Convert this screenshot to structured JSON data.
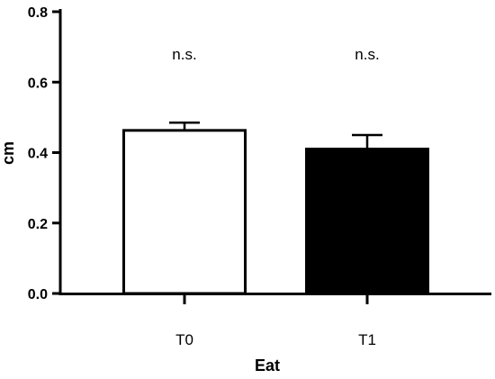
{
  "chart_data": {
    "type": "bar",
    "categories": [
      "T0",
      "T1"
    ],
    "values": [
      0.463,
      0.41
    ],
    "errors": [
      0.022,
      0.04
    ],
    "bar_fills": [
      "#ffffff",
      "#000000"
    ],
    "annotations": [
      "n.s.",
      "n.s."
    ],
    "xlabel": "Eat",
    "ylabel": "cm",
    "ylim": [
      0,
      0.8
    ],
    "yticks": [
      "0.0",
      "0.2",
      "0.4",
      "0.6",
      "0.8"
    ],
    "grid": false,
    "legend": "none"
  }
}
